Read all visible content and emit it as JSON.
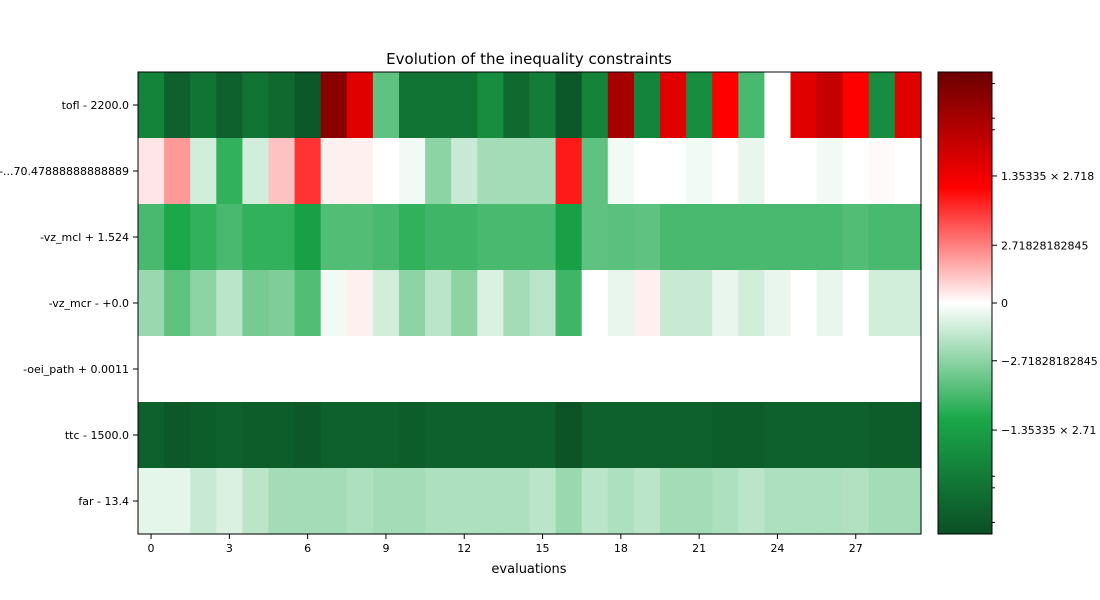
{
  "chart_data": {
    "type": "heatmap",
    "title": "Evolution of the inequality constraints",
    "xlabel": "evaluations",
    "ylabel": "",
    "x_ticks": [
      "0",
      "3",
      "6",
      "9",
      "12",
      "15",
      "18",
      "21",
      "24",
      "27"
    ],
    "x_tick_values": [
      0,
      3,
      6,
      9,
      12,
      15,
      18,
      21,
      24,
      27
    ],
    "n_evaluations": 30,
    "rows": [
      "tofl - 2200.0",
      "-...70.47888888888889",
      "-vz_mcl + 1.524",
      "-vz_mcr - +0.0",
      "-oei_path + 0.0011",
      "ttc - 1500.0",
      "far - 13.4"
    ],
    "values": [
      [
        -0.7,
        -0.9,
        -0.8,
        -0.9,
        -0.8,
        -0.85,
        -0.95,
        0.9,
        0.6,
        -0.35,
        -0.8,
        -0.8,
        -0.8,
        -0.65,
        -0.85,
        -0.75,
        -0.95,
        -0.7,
        0.8,
        -0.7,
        0.6,
        -0.65,
        0.5,
        -0.4,
        0.0,
        0.6,
        0.7,
        0.5,
        -0.65,
        0.6
      ],
      [
        0.05,
        0.2,
        -0.1,
        -0.45,
        -0.1,
        0.12,
        0.4,
        0.03,
        0.03,
        0.0,
        -0.03,
        -0.25,
        -0.12,
        -0.2,
        -0.2,
        -0.2,
        0.45,
        -0.35,
        -0.03,
        0.0,
        0.0,
        -0.03,
        0.0,
        -0.05,
        0.0,
        0.0,
        -0.03,
        0.0,
        0.01,
        0.0
      ],
      [
        -0.4,
        -0.5,
        -0.45,
        -0.4,
        -0.45,
        -0.45,
        -0.55,
        -0.38,
        -0.38,
        -0.4,
        -0.45,
        -0.42,
        -0.42,
        -0.4,
        -0.4,
        -0.4,
        -0.55,
        -0.35,
        -0.36,
        -0.35,
        -0.4,
        -0.4,
        -0.4,
        -0.4,
        -0.4,
        -0.4,
        -0.4,
        -0.38,
        -0.4,
        -0.4
      ],
      [
        -0.22,
        -0.35,
        -0.25,
        -0.15,
        -0.3,
        -0.28,
        -0.38,
        -0.03,
        0.03,
        -0.1,
        -0.25,
        -0.15,
        -0.25,
        -0.08,
        -0.2,
        -0.15,
        -0.42,
        0.0,
        -0.05,
        0.03,
        -0.12,
        -0.12,
        -0.05,
        -0.1,
        -0.05,
        0.0,
        -0.05,
        0.0,
        -0.1,
        -0.1
      ],
      [
        0.0,
        0.0,
        0.0,
        0.0,
        0.0,
        0.0,
        0.0,
        0.0,
        0.0,
        0.0,
        0.0,
        0.0,
        0.0,
        0.0,
        0.0,
        0.0,
        0.0,
        0.0,
        0.0,
        0.0,
        0.0,
        0.0,
        0.0,
        0.0,
        0.0,
        0.0,
        0.0,
        0.0,
        0.0,
        0.0
      ],
      [
        -0.9,
        -0.95,
        -0.92,
        -0.9,
        -0.92,
        -0.92,
        -0.95,
        -0.9,
        -0.9,
        -0.9,
        -0.92,
        -0.9,
        -0.9,
        -0.9,
        -0.9,
        -0.9,
        -0.98,
        -0.9,
        -0.9,
        -0.9,
        -0.9,
        -0.9,
        -0.92,
        -0.92,
        -0.9,
        -0.9,
        -0.9,
        -0.9,
        -0.92,
        -0.92
      ],
      [
        -0.06,
        -0.06,
        -0.12,
        -0.08,
        -0.15,
        -0.2,
        -0.2,
        -0.2,
        -0.18,
        -0.2,
        -0.2,
        -0.18,
        -0.18,
        -0.18,
        -0.18,
        -0.15,
        -0.22,
        -0.15,
        -0.18,
        -0.15,
        -0.2,
        -0.2,
        -0.18,
        -0.15,
        -0.18,
        -0.18,
        -0.18,
        -0.17,
        -0.2,
        -0.2
      ]
    ],
    "value_range": [
      -1,
      1
    ],
    "colorbar": {
      "colors": [
        "#0b4f25",
        "#1aa84a",
        "#ffffff",
        "#ff0000",
        "#6b0000"
      ],
      "ticks": [
        {
          "value": 0.55,
          "label": "1.35335 × 2.718"
        },
        {
          "value": 0.25,
          "label": "2.71828182845"
        },
        {
          "value": 0.0,
          "label": "0"
        },
        {
          "value": -0.25,
          "label": "−2.71828182845"
        },
        {
          "value": -0.55,
          "label": "−1.35335 × 2.71"
        }
      ],
      "minor_ticks": [
        0.95,
        0.8,
        0.75,
        -0.75,
        -0.8,
        -0.95
      ]
    }
  }
}
